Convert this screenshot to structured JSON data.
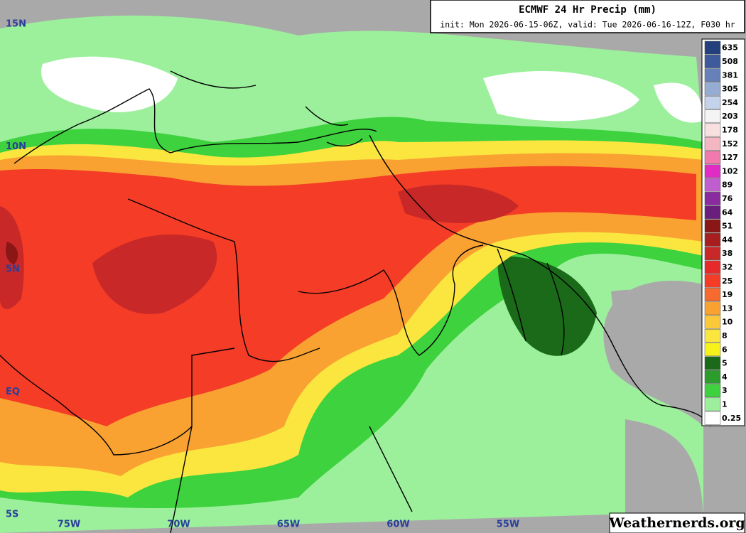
{
  "header": {
    "title": "ECMWF 24 Hr Precip (mm)",
    "subtitle": "init: Mon 2026-06-15-06Z, valid: Tue 2026-06-16-12Z, F030 hr"
  },
  "latitude_labels": [
    "15N",
    "10N",
    "5N",
    "EQ",
    "5S"
  ],
  "longitude_labels": [
    "75W",
    "70W",
    "65W",
    "60W",
    "55W"
  ],
  "legend": [
    {
      "value": 635,
      "color": "#233f7c"
    },
    {
      "value": 508,
      "color": "#3d5b9c"
    },
    {
      "value": 381,
      "color": "#6681b9"
    },
    {
      "value": 305,
      "color": "#95acd3"
    },
    {
      "value": 254,
      "color": "#c4d3ea"
    },
    {
      "value": 203,
      "color": "#f4f4f4"
    },
    {
      "value": 178,
      "color": "#f8e0e0"
    },
    {
      "value": 152,
      "color": "#f4b6c2"
    },
    {
      "value": 127,
      "color": "#f07aae"
    },
    {
      "value": 102,
      "color": "#e02cc4"
    },
    {
      "value": 89,
      "color": "#c05ed0"
    },
    {
      "value": 76,
      "color": "#8a2ca0"
    },
    {
      "value": 64,
      "color": "#6a1e7e"
    },
    {
      "value": 51,
      "color": "#8a1616"
    },
    {
      "value": 44,
      "color": "#a81e1e"
    },
    {
      "value": 38,
      "color": "#c82828"
    },
    {
      "value": 32,
      "color": "#e62a2a"
    },
    {
      "value": 25,
      "color": "#f43c26"
    },
    {
      "value": 19,
      "color": "#f66a2e"
    },
    {
      "value": 13,
      "color": "#f9a232"
    },
    {
      "value": 10,
      "color": "#fbc83a"
    },
    {
      "value": 8,
      "color": "#fbe640"
    },
    {
      "value": 6,
      "color": "#f6f21a"
    },
    {
      "value": 5,
      "color": "#1a6a1a"
    },
    {
      "value": 4,
      "color": "#2c9c2c"
    },
    {
      "value": 3,
      "color": "#3ed23e"
    },
    {
      "value": 1,
      "color": "#9cf09c"
    },
    {
      "value": 0.25,
      "color": "#ffffff"
    }
  ],
  "watermark": "Weathernerds.org"
}
